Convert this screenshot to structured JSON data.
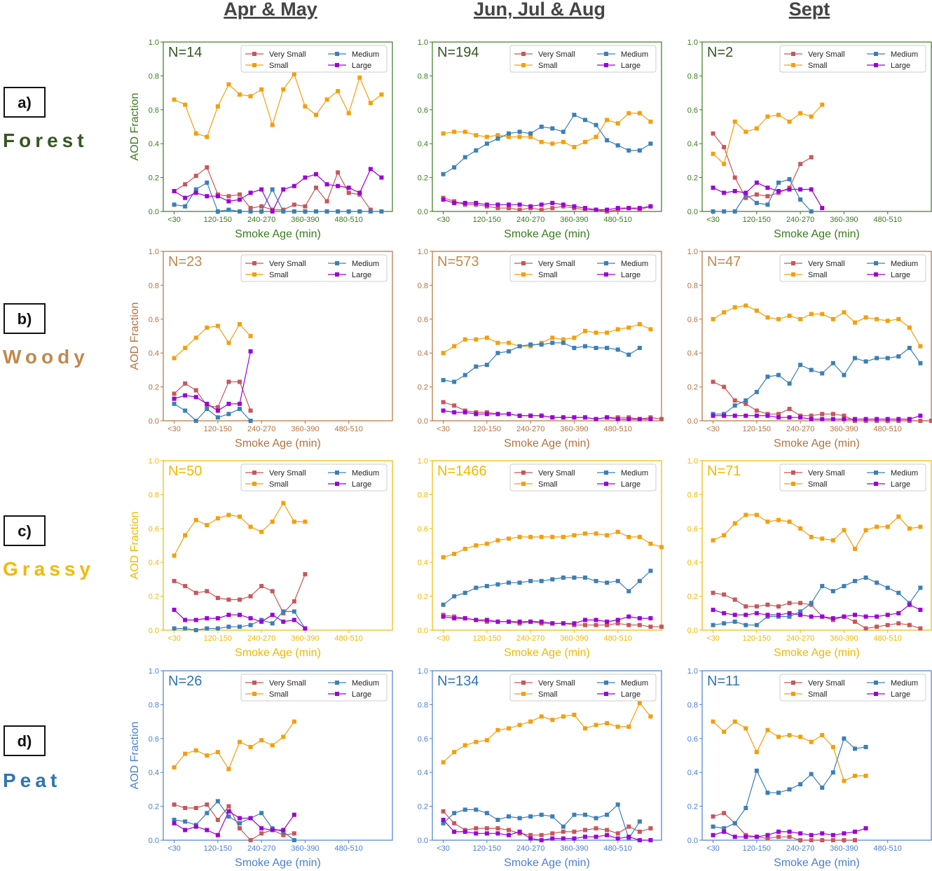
{
  "figure": {
    "columns": [
      "Apr & May",
      "Jun, Jul & Aug",
      "Sept"
    ],
    "rows": [
      {
        "label": "a)",
        "name": "Forest",
        "color": "#375623"
      },
      {
        "label": "b)",
        "name": "Woody",
        "color": "#c0894e"
      },
      {
        "label": "c)",
        "name": "Grassy",
        "color": "#f5b800"
      },
      {
        "label": "d)",
        "name": "Peat",
        "color": "#2e75b6"
      }
    ],
    "axis_colors": [
      "#3a7a1e",
      "#b5713c",
      "#f0b800",
      "#4a7fd0"
    ],
    "n_colors": [
      "#375623",
      "#c0894e",
      "#f5b800",
      "#2e75b6"
    ],
    "series_colors": {
      "Very Small": "#c8565a",
      "Small": "#f59e0b",
      "Medium": "#3b7fb8",
      "Large": "#9b00d8"
    }
  },
  "chart_data": {
    "type": "line",
    "xlabel": "Smoke Age (min)",
    "ylabel": "AOD Fraction",
    "x_index_range": [
      -1,
      20
    ],
    "ylim": [
      0,
      1
    ],
    "yticks": [
      "0.0",
      "0.2",
      "0.4",
      "0.6",
      "0.8",
      "1.0"
    ],
    "xticks": [
      {
        "index": 0,
        "label": "<30"
      },
      {
        "index": 4,
        "label": "120-150"
      },
      {
        "index": 8,
        "label": "240-270"
      },
      {
        "index": 12,
        "label": "360-390"
      },
      {
        "index": 16,
        "label": "480-510"
      }
    ],
    "legend": [
      "Very Small",
      "Small",
      "Medium",
      "Large"
    ],
    "legend_position": "top-right",
    "panels": [
      {
        "row": 0,
        "col": 0,
        "n_label": "N=14",
        "series": {
          "Very Small": [
            0.12,
            0.16,
            0.21,
            0.26,
            0.1,
            0.09,
            0.1,
            0.02,
            0.03,
            0.01,
            0.01,
            0.04,
            0.03,
            0.14,
            0.06,
            0.23,
            0.11,
            0.1,
            0.01
          ],
          "Small": [
            0.66,
            0.63,
            0.46,
            0.44,
            0.62,
            0.75,
            0.69,
            0.68,
            0.72,
            0.51,
            0.72,
            0.81,
            0.62,
            0.57,
            0.66,
            0.71,
            0.58,
            0.79,
            0.64,
            0.69
          ],
          "Medium": [
            0.04,
            0.03,
            0.13,
            0.17,
            0.0,
            0.01,
            0.0,
            0.0,
            0.0,
            0.13,
            0.0,
            0.0,
            0.0,
            0.0,
            0.0,
            0.0,
            0.0,
            0.0,
            0.0,
            0.0
          ],
          "Large": [
            0.12,
            0.08,
            0.11,
            0.09,
            0.09,
            0.06,
            0.07,
            0.11,
            0.13,
            0.0,
            0.13,
            0.15,
            0.2,
            0.22,
            0.16,
            0.15,
            0.14,
            0.11,
            0.25,
            0.2
          ]
        }
      },
      {
        "row": 0,
        "col": 1,
        "n_label": "N=194",
        "series": {
          "Very Small": [
            0.08,
            0.06,
            0.04,
            0.04,
            0.03,
            0.02,
            0.02,
            0.01,
            0.02,
            0.01,
            0.02,
            0.03,
            0.02,
            0.01,
            0.01,
            0.0,
            0.01,
            0.02,
            0.01,
            0.03
          ],
          "Small": [
            0.46,
            0.47,
            0.47,
            0.45,
            0.44,
            0.45,
            0.44,
            0.44,
            0.44,
            0.41,
            0.4,
            0.41,
            0.38,
            0.41,
            0.44,
            0.54,
            0.52,
            0.58,
            0.58,
            0.53
          ],
          "Medium": [
            0.22,
            0.26,
            0.32,
            0.36,
            0.4,
            0.43,
            0.46,
            0.47,
            0.46,
            0.5,
            0.49,
            0.47,
            0.57,
            0.54,
            0.51,
            0.42,
            0.39,
            0.36,
            0.36,
            0.4
          ],
          "Large": [
            0.07,
            0.05,
            0.05,
            0.05,
            0.04,
            0.04,
            0.04,
            0.04,
            0.03,
            0.04,
            0.05,
            0.04,
            0.03,
            0.02,
            0.01,
            0.01,
            0.02,
            0.02,
            0.02,
            0.03
          ]
        }
      },
      {
        "row": 0,
        "col": 2,
        "n_label": "N=2",
        "series": {
          "Very Small": [
            0.46,
            0.38,
            0.2,
            0.08,
            0.1,
            0.09,
            0.11,
            0.14,
            0.28,
            0.32
          ],
          "Small": [
            0.34,
            0.28,
            0.53,
            0.47,
            0.49,
            0.56,
            0.57,
            0.53,
            0.58,
            0.56,
            0.63
          ],
          "Medium": [
            0.0,
            0.0,
            0.0,
            0.1,
            0.05,
            0.04,
            0.17,
            0.19,
            0.07,
            0.0
          ],
          "Large": [
            0.14,
            0.11,
            0.12,
            0.11,
            0.17,
            0.14,
            0.12,
            0.13,
            0.13,
            0.13,
            0.02
          ]
        }
      },
      {
        "row": 1,
        "col": 0,
        "n_label": "N=23",
        "series": {
          "Very Small": [
            0.16,
            0.22,
            0.18,
            0.09,
            0.08,
            0.23,
            0.23,
            0.06
          ],
          "Small": [
            0.37,
            0.43,
            0.49,
            0.55,
            0.56,
            0.46,
            0.57,
            0.5
          ],
          "Medium": [
            0.1,
            0.06,
            0.0,
            0.07,
            0.02,
            0.04,
            0.07,
            0.0
          ],
          "Large": [
            0.13,
            0.15,
            0.14,
            0.1,
            0.06,
            0.1,
            0.1,
            0.41
          ]
        }
      },
      {
        "row": 1,
        "col": 1,
        "n_label": "N=573",
        "series": {
          "Very Small": [
            0.11,
            0.09,
            0.06,
            0.05,
            0.05,
            0.04,
            0.04,
            0.03,
            0.03,
            0.03,
            0.02,
            0.02,
            0.02,
            0.02,
            0.01,
            0.02,
            0.02,
            0.02,
            0.01,
            0.02,
            0.01
          ],
          "Small": [
            0.4,
            0.44,
            0.48,
            0.48,
            0.49,
            0.46,
            0.46,
            0.44,
            0.44,
            0.46,
            0.49,
            0.48,
            0.49,
            0.53,
            0.52,
            0.52,
            0.54,
            0.55,
            0.57,
            0.54
          ],
          "Medium": [
            0.24,
            0.23,
            0.27,
            0.32,
            0.33,
            0.4,
            0.41,
            0.44,
            0.45,
            0.45,
            0.46,
            0.46,
            0.43,
            0.44,
            0.43,
            0.43,
            0.42,
            0.39,
            0.43
          ],
          "Large": [
            0.06,
            0.05,
            0.05,
            0.04,
            0.04,
            0.04,
            0.04,
            0.03,
            0.03,
            0.03,
            0.02,
            0.02,
            0.02,
            0.02,
            0.01,
            0.02,
            0.01,
            0.01,
            0.01,
            0.01
          ]
        }
      },
      {
        "row": 1,
        "col": 2,
        "n_label": "N=47",
        "series": {
          "Very Small": [
            0.23,
            0.2,
            0.12,
            0.1,
            0.06,
            0.04,
            0.04,
            0.07,
            0.03,
            0.03,
            0.04,
            0.04,
            0.03,
            0.0,
            0.0,
            0.0,
            0.0,
            0.0,
            0.0,
            0.0,
            0.0
          ],
          "Small": [
            0.6,
            0.64,
            0.67,
            0.68,
            0.65,
            0.61,
            0.6,
            0.62,
            0.6,
            0.63,
            0.63,
            0.6,
            0.64,
            0.58,
            0.61,
            0.6,
            0.59,
            0.6,
            0.55,
            0.44
          ],
          "Medium": [
            0.04,
            0.04,
            0.09,
            0.12,
            0.17,
            0.26,
            0.27,
            0.22,
            0.33,
            0.3,
            0.28,
            0.34,
            0.27,
            0.37,
            0.35,
            0.37,
            0.37,
            0.38,
            0.43,
            0.34
          ],
          "Large": [
            0.03,
            0.03,
            0.03,
            0.03,
            0.03,
            0.03,
            0.02,
            0.02,
            0.02,
            0.01,
            0.01,
            0.01,
            0.01,
            0.01,
            0.01,
            0.01,
            0.01,
            0.01,
            0.01,
            0.03
          ]
        }
      },
      {
        "row": 2,
        "col": 0,
        "n_label": "N=50",
        "series": {
          "Very Small": [
            0.29,
            0.26,
            0.22,
            0.23,
            0.19,
            0.18,
            0.18,
            0.2,
            0.26,
            0.23,
            0.1,
            0.17,
            0.33
          ],
          "Small": [
            0.44,
            0.56,
            0.65,
            0.62,
            0.66,
            0.68,
            0.67,
            0.61,
            0.58,
            0.64,
            0.75,
            0.64,
            0.64
          ],
          "Medium": [
            0.01,
            0.01,
            0.0,
            0.01,
            0.01,
            0.02,
            0.02,
            0.03,
            0.06,
            0.04,
            0.11,
            0.11,
            0.01
          ],
          "Large": [
            0.12,
            0.06,
            0.06,
            0.07,
            0.07,
            0.09,
            0.09,
            0.07,
            0.05,
            0.09,
            0.05,
            0.06,
            0.01
          ]
        }
      },
      {
        "row": 2,
        "col": 1,
        "n_label": "N=1466",
        "series": {
          "Very Small": [
            0.09,
            0.08,
            0.07,
            0.06,
            0.05,
            0.05,
            0.05,
            0.04,
            0.05,
            0.04,
            0.04,
            0.04,
            0.03,
            0.03,
            0.03,
            0.03,
            0.04,
            0.03,
            0.03,
            0.02,
            0.02
          ],
          "Small": [
            0.43,
            0.45,
            0.48,
            0.5,
            0.51,
            0.53,
            0.54,
            0.55,
            0.55,
            0.55,
            0.55,
            0.55,
            0.56,
            0.57,
            0.57,
            0.56,
            0.58,
            0.55,
            0.55,
            0.51,
            0.49
          ],
          "Medium": [
            0.15,
            0.2,
            0.22,
            0.25,
            0.26,
            0.27,
            0.28,
            0.28,
            0.29,
            0.29,
            0.3,
            0.31,
            0.31,
            0.31,
            0.29,
            0.28,
            0.29,
            0.23,
            0.29,
            0.35
          ],
          "Large": [
            0.08,
            0.07,
            0.07,
            0.06,
            0.06,
            0.05,
            0.05,
            0.05,
            0.05,
            0.05,
            0.04,
            0.04,
            0.04,
            0.06,
            0.06,
            0.05,
            0.06,
            0.08,
            0.07,
            0.07
          ]
        }
      },
      {
        "row": 2,
        "col": 2,
        "n_label": "N=71",
        "series": {
          "Very Small": [
            0.22,
            0.21,
            0.18,
            0.14,
            0.14,
            0.15,
            0.14,
            0.16,
            0.16,
            0.15,
            0.08,
            0.06,
            0.08,
            0.05,
            0.01,
            0.02,
            0.03,
            0.04,
            0.03,
            0.01
          ],
          "Small": [
            0.53,
            0.56,
            0.63,
            0.68,
            0.68,
            0.64,
            0.65,
            0.64,
            0.6,
            0.55,
            0.54,
            0.53,
            0.59,
            0.48,
            0.59,
            0.61,
            0.61,
            0.67,
            0.6,
            0.61
          ],
          "Medium": [
            0.03,
            0.04,
            0.05,
            0.03,
            0.03,
            0.08,
            0.08,
            0.08,
            0.11,
            0.16,
            0.26,
            0.23,
            0.26,
            0.29,
            0.31,
            0.28,
            0.25,
            0.22,
            0.16,
            0.25
          ],
          "Large": [
            0.12,
            0.1,
            0.09,
            0.09,
            0.1,
            0.09,
            0.09,
            0.1,
            0.09,
            0.08,
            0.08,
            0.07,
            0.08,
            0.09,
            0.08,
            0.08,
            0.09,
            0.1,
            0.15,
            0.12
          ]
        }
      },
      {
        "row": 3,
        "col": 0,
        "n_label": "N=26",
        "series": {
          "Very Small": [
            0.21,
            0.19,
            0.19,
            0.21,
            0.12,
            0.2,
            0.07,
            0.0,
            0.04,
            0.06,
            0.03,
            0.04
          ],
          "Small": [
            0.43,
            0.51,
            0.53,
            0.5,
            0.52,
            0.42,
            0.58,
            0.55,
            0.59,
            0.56,
            0.61,
            0.7
          ],
          "Medium": [
            0.12,
            0.11,
            0.09,
            0.16,
            0.23,
            0.14,
            0.1,
            0.13,
            0.16,
            0.07,
            0.05,
            0.0
          ],
          "Large": [
            0.1,
            0.06,
            0.08,
            0.06,
            0.03,
            0.17,
            0.13,
            0.13,
            0.07,
            0.06,
            0.06,
            0.15
          ]
        }
      },
      {
        "row": 3,
        "col": 1,
        "n_label": "N=134",
        "series": {
          "Very Small": [
            0.17,
            0.1,
            0.06,
            0.07,
            0.07,
            0.07,
            0.06,
            0.04,
            0.03,
            0.03,
            0.04,
            0.05,
            0.05,
            0.06,
            0.07,
            0.06,
            0.04,
            0.08,
            0.05,
            0.07
          ],
          "Small": [
            0.46,
            0.52,
            0.56,
            0.58,
            0.59,
            0.65,
            0.66,
            0.68,
            0.7,
            0.73,
            0.71,
            0.73,
            0.74,
            0.66,
            0.68,
            0.69,
            0.67,
            0.67,
            0.81,
            0.73
          ],
          "Medium": [
            0.1,
            0.16,
            0.18,
            0.18,
            0.16,
            0.12,
            0.14,
            0.13,
            0.14,
            0.15,
            0.14,
            0.08,
            0.15,
            0.15,
            0.13,
            0.15,
            0.21,
            0.01,
            0.11
          ],
          "Large": [
            0.12,
            0.05,
            0.05,
            0.04,
            0.04,
            0.04,
            0.03,
            0.05,
            0.01,
            0.0,
            0.01,
            0.01,
            0.01,
            0.02,
            0.02,
            0.03,
            0.01,
            0.02,
            0.0,
            0.0
          ]
        }
      },
      {
        "row": 3,
        "col": 2,
        "n_label": "N=11",
        "series": {
          "Very Small": [
            0.14,
            0.16,
            0.1,
            0.03,
            0.02,
            0.01,
            0.02,
            0.02,
            0.0,
            0.0,
            0.0,
            0.0,
            0.0,
            0.0
          ],
          "Small": [
            0.7,
            0.64,
            0.7,
            0.66,
            0.52,
            0.65,
            0.61,
            0.62,
            0.61,
            0.58,
            0.62,
            0.55,
            0.35,
            0.38,
            0.38
          ],
          "Medium": [
            0.08,
            0.07,
            0.1,
            0.19,
            0.41,
            0.28,
            0.28,
            0.3,
            0.33,
            0.39,
            0.31,
            0.4,
            0.6,
            0.54,
            0.55
          ],
          "Large": [
            0.03,
            0.05,
            0.02,
            0.02,
            0.02,
            0.03,
            0.05,
            0.05,
            0.04,
            0.03,
            0.04,
            0.03,
            0.04,
            0.05,
            0.07
          ]
        }
      }
    ]
  }
}
